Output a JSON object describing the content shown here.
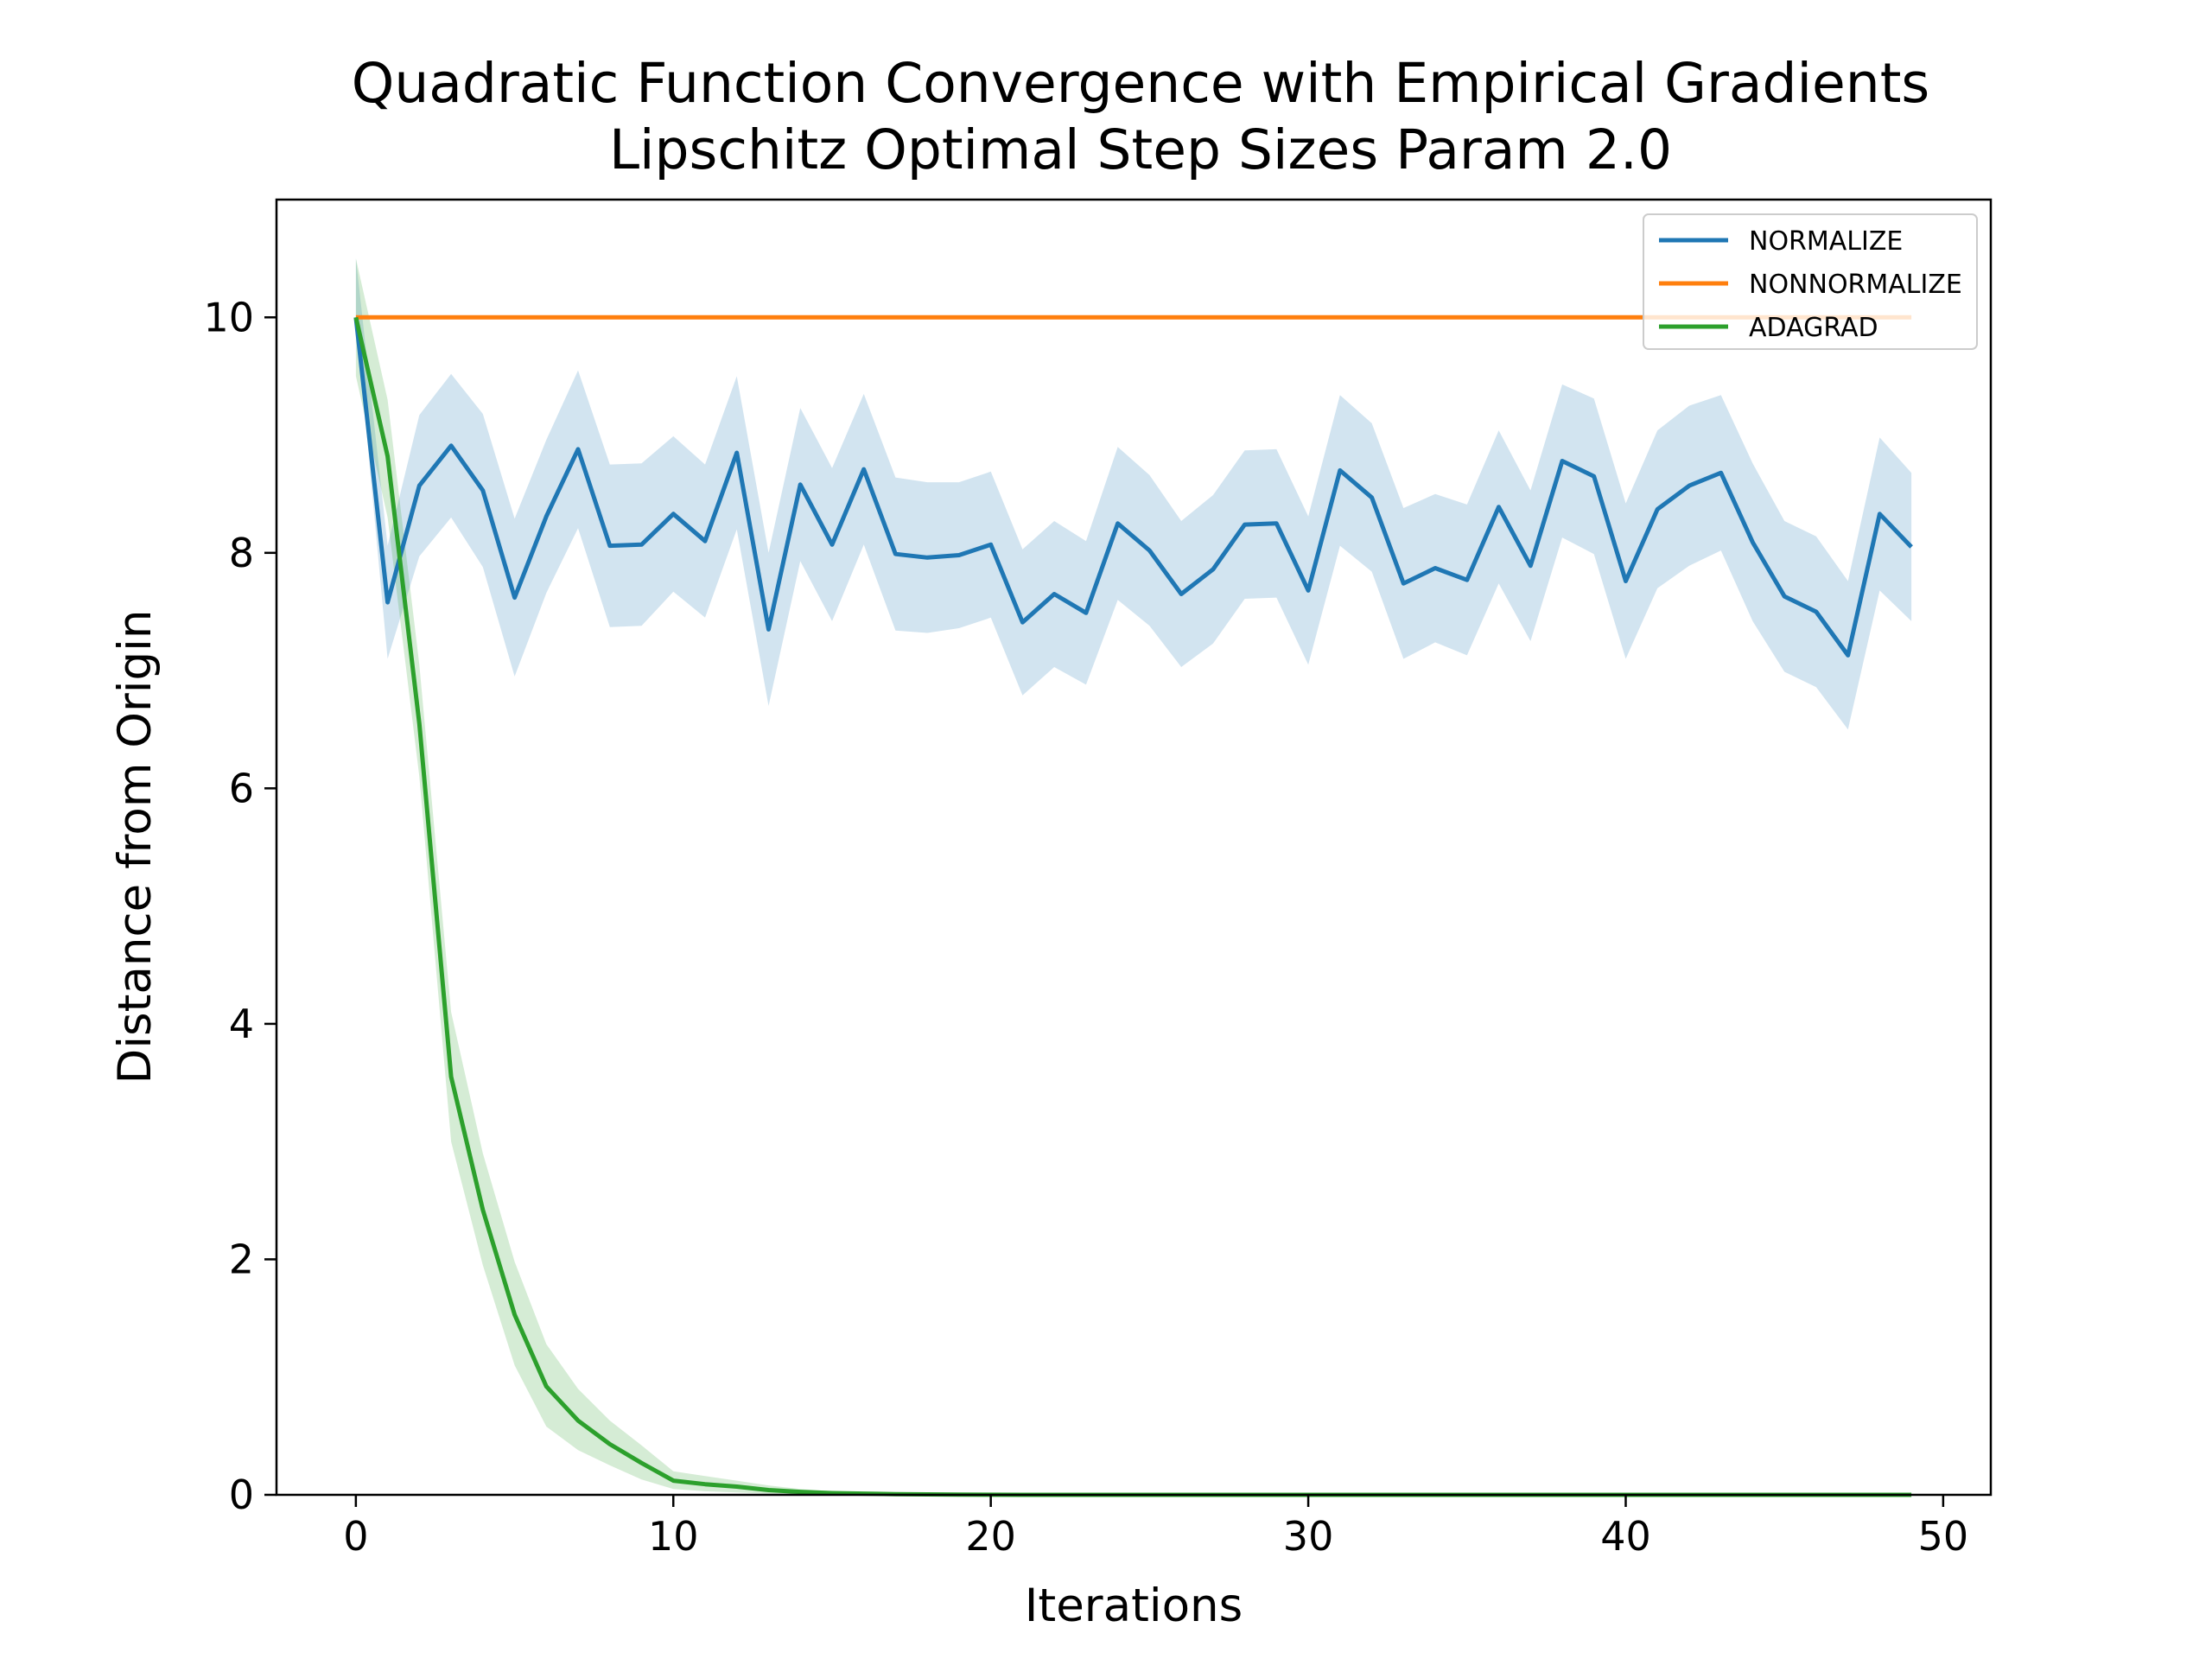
{
  "chart_data": {
    "type": "line",
    "title": "Quadratic Function Convergence with Empirical Gradients",
    "subtitle": "Lipschitz Optimal Step Sizes Param 2.0",
    "xlabel": "Iterations",
    "ylabel": "Distance from Origin",
    "xlim": [
      -2.5,
      51.5
    ],
    "ylim": [
      0,
      11
    ],
    "xticks": [
      0,
      10,
      20,
      30,
      40,
      50
    ],
    "yticks": [
      0,
      2,
      4,
      6,
      8,
      10
    ],
    "grid": false,
    "legend_position": "top-right",
    "x": [
      0,
      1,
      2,
      3,
      4,
      5,
      6,
      7,
      8,
      9,
      10,
      11,
      12,
      13,
      14,
      15,
      16,
      17,
      18,
      19,
      20,
      21,
      22,
      23,
      24,
      25,
      26,
      27,
      28,
      29,
      30,
      31,
      32,
      33,
      34,
      35,
      36,
      37,
      38,
      39,
      40,
      41,
      42,
      43,
      44,
      45,
      46,
      47,
      48,
      49
    ],
    "series": [
      {
        "name": "NORMALIZE",
        "color": "#1f77b4",
        "band_color": "#1f77b4",
        "values": [
          10.0,
          7.58,
          8.57,
          8.91,
          8.53,
          7.62,
          8.31,
          8.88,
          8.06,
          8.07,
          8.33,
          8.1,
          8.85,
          7.35,
          8.58,
          8.07,
          8.71,
          7.99,
          7.96,
          7.98,
          8.07,
          7.41,
          7.65,
          7.49,
          8.25,
          8.02,
          7.65,
          7.86,
          8.24,
          8.25,
          7.68,
          8.7,
          8.47,
          7.74,
          7.87,
          7.77,
          8.39,
          7.89,
          8.78,
          8.65,
          7.76,
          8.37,
          8.57,
          8.68,
          8.09,
          7.63,
          7.5,
          7.13,
          8.33,
          8.05
        ],
        "lower": [
          10.0,
          7.1,
          7.97,
          8.3,
          7.88,
          6.95,
          7.66,
          8.21,
          7.37,
          7.38,
          7.67,
          7.45,
          8.2,
          6.7,
          7.93,
          7.42,
          8.07,
          7.34,
          7.32,
          7.36,
          7.45,
          6.79,
          7.03,
          6.88,
          7.6,
          7.38,
          7.03,
          7.23,
          7.61,
          7.62,
          7.05,
          8.06,
          7.84,
          7.1,
          7.24,
          7.13,
          7.74,
          7.25,
          8.13,
          7.99,
          7.1,
          7.7,
          7.89,
          8.02,
          7.42,
          6.99,
          6.86,
          6.5,
          7.68,
          7.42
        ],
        "upper": [
          10.5,
          8.06,
          9.17,
          9.52,
          9.18,
          8.29,
          8.96,
          9.55,
          8.75,
          8.76,
          8.99,
          8.75,
          9.5,
          8.0,
          9.23,
          8.72,
          9.35,
          8.64,
          8.6,
          8.6,
          8.69,
          8.03,
          8.27,
          8.1,
          8.9,
          8.66,
          8.27,
          8.49,
          8.87,
          8.88,
          8.31,
          9.34,
          9.1,
          8.38,
          8.5,
          8.41,
          9.04,
          8.53,
          9.43,
          9.31,
          8.42,
          9.04,
          9.25,
          9.34,
          8.76,
          8.27,
          8.14,
          7.76,
          8.98,
          8.68
        ]
      },
      {
        "name": "NONNORMALIZE",
        "color": "#ff7f0e",
        "band_color": "#ff7f0e",
        "values": [
          10,
          10,
          10,
          10,
          10,
          10,
          10,
          10,
          10,
          10,
          10,
          10,
          10,
          10,
          10,
          10,
          10,
          10,
          10,
          10,
          10,
          10,
          10,
          10,
          10,
          10,
          10,
          10,
          10,
          10,
          10,
          10,
          10,
          10,
          10,
          10,
          10,
          10,
          10,
          10,
          10,
          10,
          10,
          10,
          10,
          10,
          10,
          10,
          10,
          10
        ],
        "lower": [
          10,
          10,
          10,
          10,
          10,
          10,
          10,
          10,
          10,
          10,
          10,
          10,
          10,
          10,
          10,
          10,
          10,
          10,
          10,
          10,
          10,
          10,
          10,
          10,
          10,
          10,
          10,
          10,
          10,
          10,
          10,
          10,
          10,
          10,
          10,
          10,
          10,
          10,
          10,
          10,
          10,
          10,
          10,
          10,
          10,
          10,
          10,
          10,
          10,
          10
        ],
        "upper": [
          10,
          10,
          10,
          10,
          10,
          10,
          10,
          10,
          10,
          10,
          10,
          10,
          10,
          10,
          10,
          10,
          10,
          10,
          10,
          10,
          10,
          10,
          10,
          10,
          10,
          10,
          10,
          10,
          10,
          10,
          10,
          10,
          10,
          10,
          10,
          10,
          10,
          10,
          10,
          10,
          10,
          10,
          10,
          10,
          10,
          10,
          10,
          10,
          10,
          10
        ]
      },
      {
        "name": "ADAGRAD",
        "color": "#2ca02c",
        "band_color": "#2ca02c",
        "values": [
          10.0,
          8.82,
          6.55,
          3.55,
          2.42,
          1.53,
          0.92,
          0.63,
          0.43,
          0.27,
          0.12,
          0.09,
          0.07,
          0.04,
          0.025,
          0.015,
          0.01,
          0.006,
          0.004,
          0.002,
          0.001,
          0,
          0,
          0,
          0,
          0,
          0,
          0,
          0,
          0,
          0,
          0,
          0,
          0,
          0,
          0,
          0,
          0,
          0,
          0,
          0,
          0,
          0,
          0,
          0,
          0,
          0,
          0,
          0,
          0
        ],
        "lower": [
          9.5,
          8.3,
          6.1,
          3.0,
          1.95,
          1.1,
          0.58,
          0.38,
          0.25,
          0.13,
          0.05,
          0.03,
          0.02,
          0.01,
          0.005,
          0.003,
          0.002,
          0.001,
          0,
          0,
          0,
          0,
          0,
          0,
          0,
          0,
          0,
          0,
          0,
          0,
          0,
          0,
          0,
          0,
          0,
          0,
          0,
          0,
          0,
          0,
          0,
          0,
          0,
          0,
          0,
          0,
          0,
          0,
          0,
          0
        ],
        "upper": [
          10.5,
          9.3,
          7.05,
          4.1,
          2.9,
          1.98,
          1.28,
          0.9,
          0.63,
          0.42,
          0.2,
          0.16,
          0.12,
          0.08,
          0.05,
          0.03,
          0.02,
          0.012,
          0.008,
          0.004,
          0.002,
          0,
          0,
          0,
          0,
          0,
          0,
          0,
          0,
          0,
          0,
          0,
          0,
          0,
          0,
          0,
          0,
          0,
          0,
          0,
          0,
          0,
          0,
          0,
          0,
          0,
          0,
          0,
          0,
          0
        ]
      }
    ]
  }
}
